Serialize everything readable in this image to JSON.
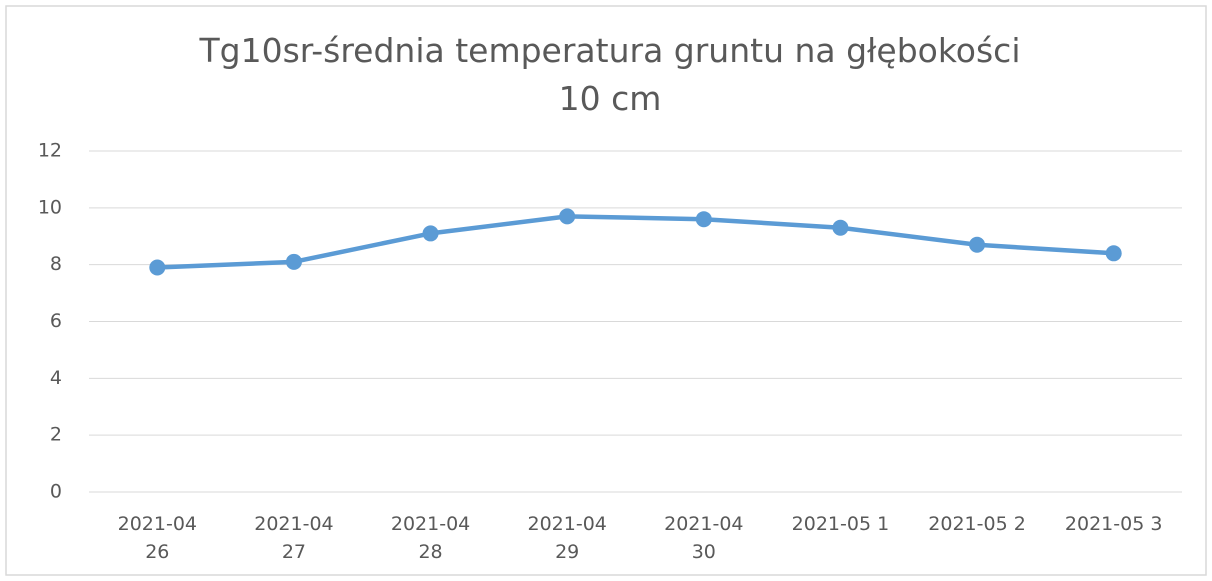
{
  "chart_data": {
    "type": "line",
    "title": "Tg10sr-średnia temperatura gruntu na głębokości 10 cm",
    "categories": [
      "2021-04 26",
      "2021-04 27",
      "2021-04 28",
      "2021-04 29",
      "2021-04 30",
      "2021-05 1",
      "2021-05 2",
      "2021-05 3"
    ],
    "series": [
      {
        "name": "Tg10sr",
        "color": "#5b9bd5",
        "values": [
          7.9,
          8.1,
          9.1,
          9.7,
          9.6,
          9.3,
          8.7,
          8.4
        ]
      }
    ],
    "ylim": [
      0,
      12
    ],
    "yticks": [
      0,
      2,
      4,
      6,
      8,
      10,
      12
    ],
    "grid": true
  }
}
